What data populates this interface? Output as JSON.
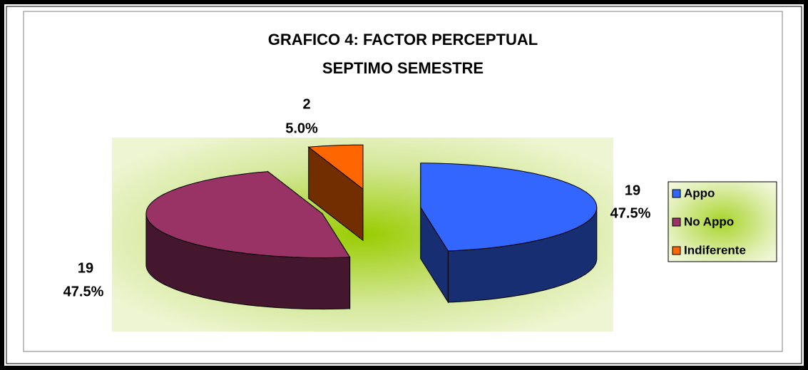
{
  "chart_data": {
    "type": "pie3d",
    "title": [
      "GRAFICO 4: FACTOR PERCEPTUAL",
      "SEPTIMO SEMESTRE"
    ],
    "categories": [
      "Appo",
      "No Appo",
      "Indiferente"
    ],
    "values": [
      19,
      19,
      2
    ],
    "percent_labels": [
      "47.5%",
      "47.5%",
      "5.0%"
    ],
    "colors": [
      "#3366ff",
      "#993366",
      "#ff6600"
    ],
    "legend": "right"
  }
}
